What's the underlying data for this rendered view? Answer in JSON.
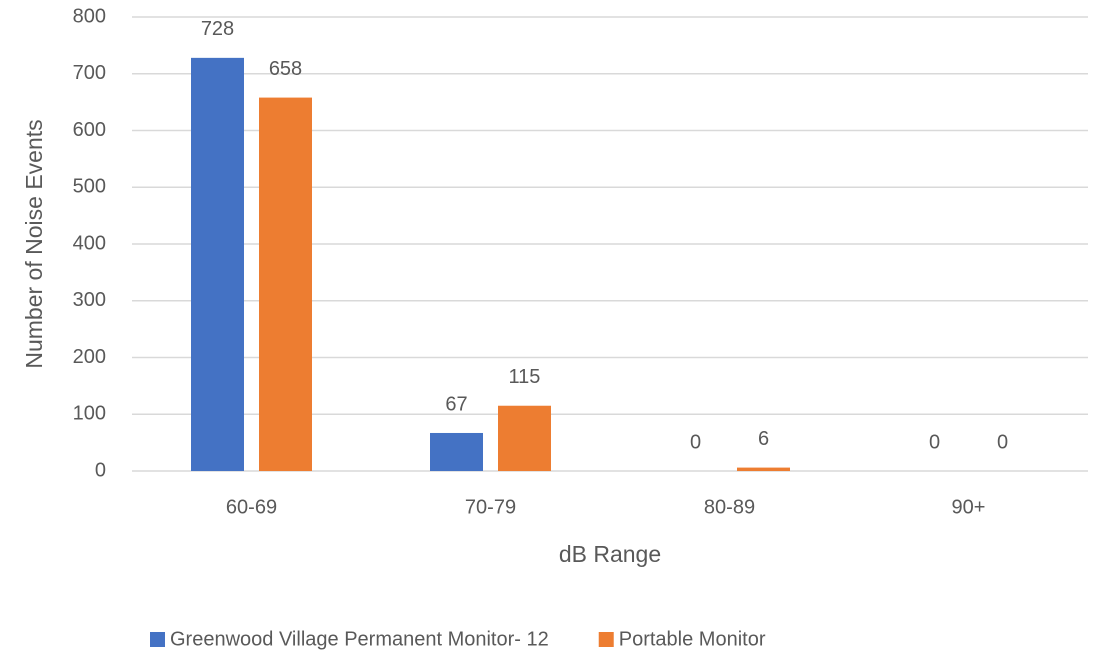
{
  "chart_data": {
    "type": "bar",
    "x_label": "dB Range",
    "y_label": "Number of Noise Events",
    "categories": [
      "60-69",
      "70-79",
      "80-89",
      "90+"
    ],
    "series": [
      {
        "name": "Greenwood Village Permanent Monitor- 12",
        "color": "#4472c4",
        "values": [
          728,
          67,
          0,
          0
        ]
      },
      {
        "name": "Portable Monitor",
        "color": "#ed7d31",
        "values": [
          658,
          115,
          6,
          0
        ]
      }
    ],
    "ylim": [
      0,
      800
    ],
    "yticks": [
      0,
      100,
      200,
      300,
      400,
      500,
      600,
      700,
      800
    ],
    "grid": true,
    "legend": "bottom"
  }
}
